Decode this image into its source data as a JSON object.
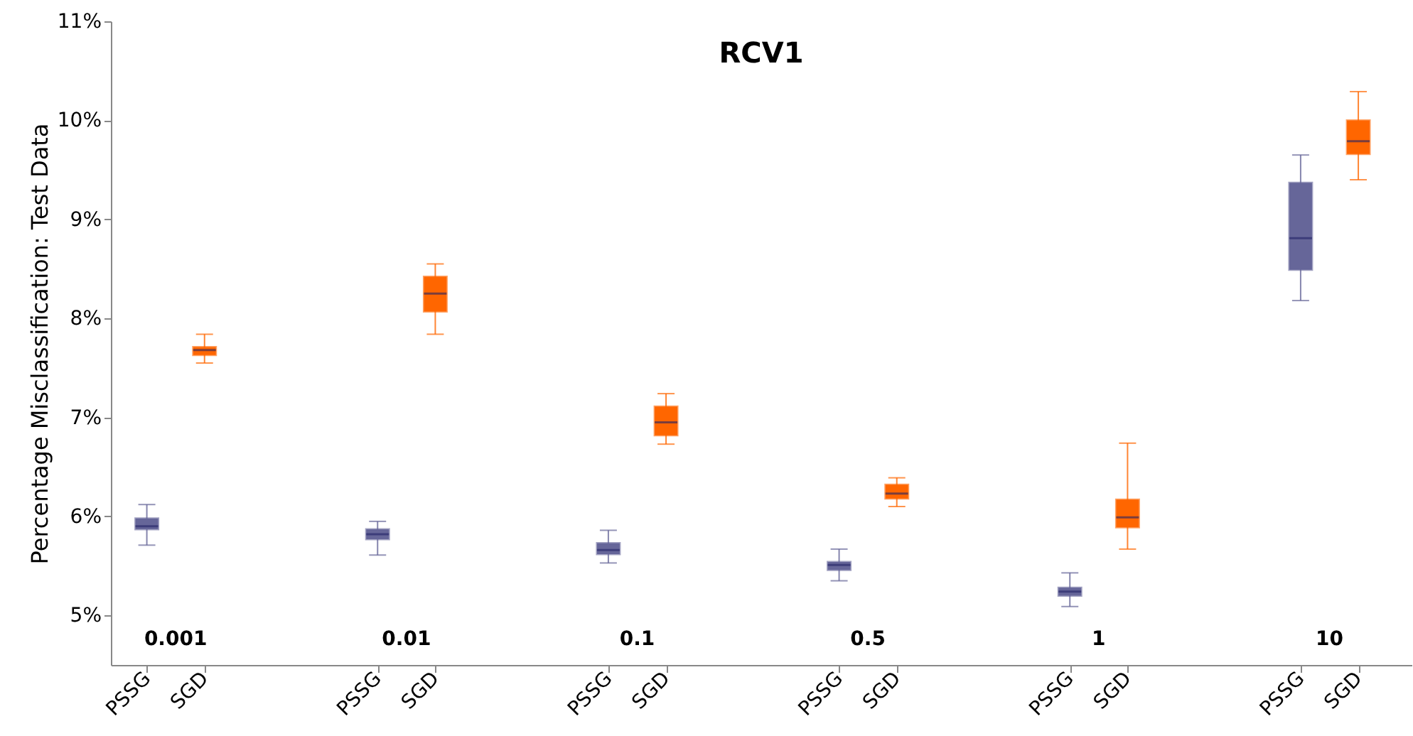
{
  "chart_data": {
    "type": "box",
    "title": "RCV1",
    "ylabel": "Percentage Misclassification: Test Data",
    "categories": [
      "PSSG",
      "SGD",
      "PSSG",
      "SGD",
      "PSSG",
      "SGD",
      "PSSG",
      "SGD",
      "PSSG",
      "SGD",
      "PSSG",
      "SGD"
    ],
    "boxes": [
      {
        "low": 5.71,
        "q1": 5.87,
        "median": 5.9,
        "q3": 5.98,
        "high": 6.12
      },
      {
        "low": 7.55,
        "q1": 7.63,
        "median": 7.68,
        "q3": 7.71,
        "high": 7.84
      },
      {
        "low": 5.61,
        "q1": 5.77,
        "median": 5.82,
        "q3": 5.87,
        "high": 5.95
      },
      {
        "low": 7.84,
        "q1": 8.07,
        "median": 8.25,
        "q3": 8.42,
        "high": 8.55
      },
      {
        "low": 5.53,
        "q1": 5.62,
        "median": 5.66,
        "q3": 5.73,
        "high": 5.86
      },
      {
        "low": 6.73,
        "q1": 6.82,
        "median": 6.95,
        "q3": 7.11,
        "high": 7.24
      },
      {
        "low": 5.35,
        "q1": 5.46,
        "median": 5.51,
        "q3": 5.54,
        "high": 5.67
      },
      {
        "low": 6.1,
        "q1": 6.18,
        "median": 6.23,
        "q3": 6.32,
        "high": 6.39
      },
      {
        "low": 5.09,
        "q1": 5.2,
        "median": 5.24,
        "q3": 5.28,
        "high": 5.43
      },
      {
        "low": 5.67,
        "q1": 5.89,
        "median": 5.99,
        "q3": 6.17,
        "high": 6.74
      },
      {
        "low": 8.18,
        "q1": 8.49,
        "median": 8.81,
        "q3": 9.37,
        "high": 9.65
      },
      {
        "low": 9.4,
        "q1": 9.66,
        "median": 9.79,
        "q3": 10.0,
        "high": 10.29
      }
    ],
    "colors": [
      "#666699",
      "#ff6600",
      "#666699",
      "#ff6600",
      "#666699",
      "#ff6600",
      "#666699",
      "#ff6600",
      "#666699",
      "#ff6600",
      "#666699",
      "#ff6600"
    ],
    "annotations": [
      "0.001",
      "0.01",
      "0.1",
      "0.5",
      "1",
      "10"
    ],
    "ylim": [
      4.5,
      11
    ],
    "yticks": [
      {
        "value": 5,
        "label": "5%"
      },
      {
        "value": 6,
        "label": "6%"
      },
      {
        "value": 7,
        "label": "7%"
      },
      {
        "value": 8,
        "label": "8%"
      },
      {
        "value": 9,
        "label": "9%"
      },
      {
        "value": 10,
        "label": "10%"
      },
      {
        "value": 11,
        "label": "11%"
      }
    ],
    "grid": false
  }
}
